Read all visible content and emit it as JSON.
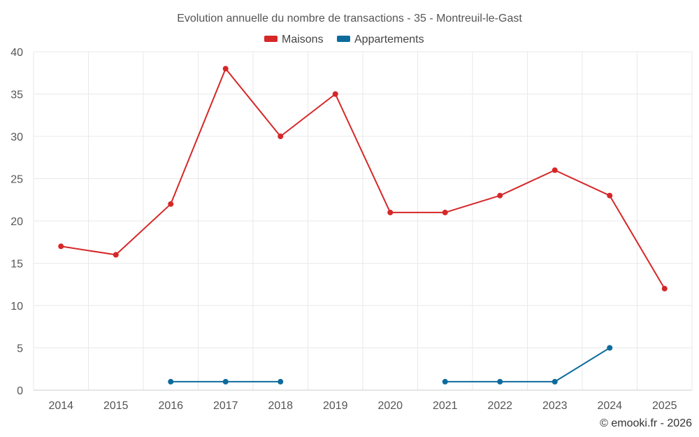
{
  "chart_data": {
    "type": "line",
    "title": "Evolution annuelle du nombre de transactions - 35 - Montreuil-le-Gast",
    "xlabel": "",
    "ylabel": "",
    "categories": [
      "2014",
      "2015",
      "2016",
      "2017",
      "2018",
      "2019",
      "2020",
      "2021",
      "2022",
      "2023",
      "2024",
      "2025"
    ],
    "ylim": [
      0,
      40
    ],
    "yticks": [
      0,
      5,
      10,
      15,
      20,
      25,
      30,
      35,
      40
    ],
    "grid": true,
    "legend_position": "top-center",
    "series": [
      {
        "name": "Maisons",
        "color": "#d62728",
        "values": [
          17,
          16,
          22,
          38,
          30,
          35,
          21,
          21,
          23,
          26,
          23,
          12
        ]
      },
      {
        "name": "Appartements",
        "color": "#0d6b9c",
        "values": [
          null,
          null,
          1,
          1,
          1,
          null,
          null,
          1,
          1,
          1,
          5,
          null
        ]
      }
    ]
  },
  "credit": "© emooki.fr - 2026"
}
